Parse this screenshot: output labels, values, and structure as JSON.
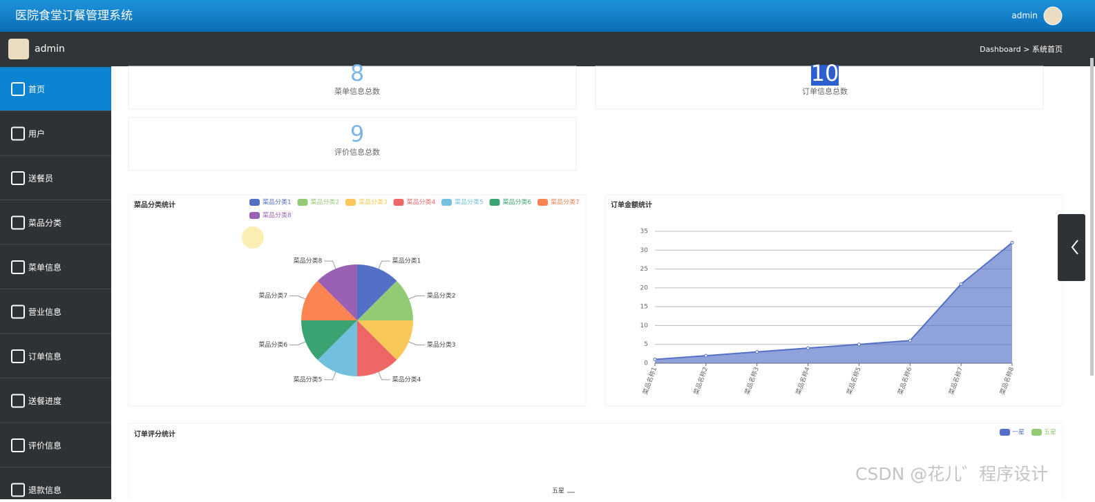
{
  "header": {
    "title": "医院食堂订餐管理系统",
    "user": "admin"
  },
  "subheader": {
    "user": "admin",
    "breadcrumb": "Dashboard > 系统首页"
  },
  "sidebar": [
    "首页",
    "用户",
    "送餐员",
    "菜品分类",
    "菜单信息",
    "营业信息",
    "订单信息",
    "送餐进度",
    "评价信息",
    "退款信息"
  ],
  "stats": [
    {
      "value": 8,
      "label": "菜单信息总数"
    },
    {
      "value": 10,
      "label": "订单信息总数"
    },
    {
      "value": 9,
      "label": "评价信息总数"
    }
  ],
  "chart_data": [
    {
      "type": "pie",
      "title": "菜品分类统计",
      "categories": [
        "菜品分类1",
        "菜品分类2",
        "菜品分类3",
        "菜品分类4",
        "菜品分类5",
        "菜品分类6",
        "菜品分类7",
        "菜品分类8"
      ],
      "values": [
        1,
        1,
        1,
        1,
        1,
        1,
        1,
        1
      ],
      "colors": [
        "#5470c6",
        "#91cc75",
        "#fac858",
        "#ee6666",
        "#73c0de",
        "#3ba272",
        "#fc8452",
        "#9a60b4"
      ],
      "legend": "top"
    },
    {
      "type": "line",
      "title": "订单金额统计",
      "categories": [
        "菜品名称1",
        "菜品名称2",
        "菜品名称3",
        "菜品名称4",
        "菜品名称5",
        "菜品名称6",
        "菜品名称7",
        "菜品名称8"
      ],
      "values": [
        1,
        2,
        3,
        4,
        5,
        6,
        21,
        32
      ],
      "color": "#5470c6",
      "area": true,
      "ylim": [
        0,
        35
      ],
      "yticks": [
        0,
        5,
        10,
        15,
        20,
        25,
        30,
        35
      ],
      "grid": true
    },
    {
      "type": "bar",
      "title": "订单评分统计",
      "categories": [
        "五星"
      ],
      "series": [
        {
          "name": "一星",
          "color": "#5470c6"
        },
        {
          "name": "五星",
          "color": "#91cc75"
        }
      ],
      "legend": "top-right"
    }
  ],
  "watermark": "CSDN @花儿゛程序设计"
}
